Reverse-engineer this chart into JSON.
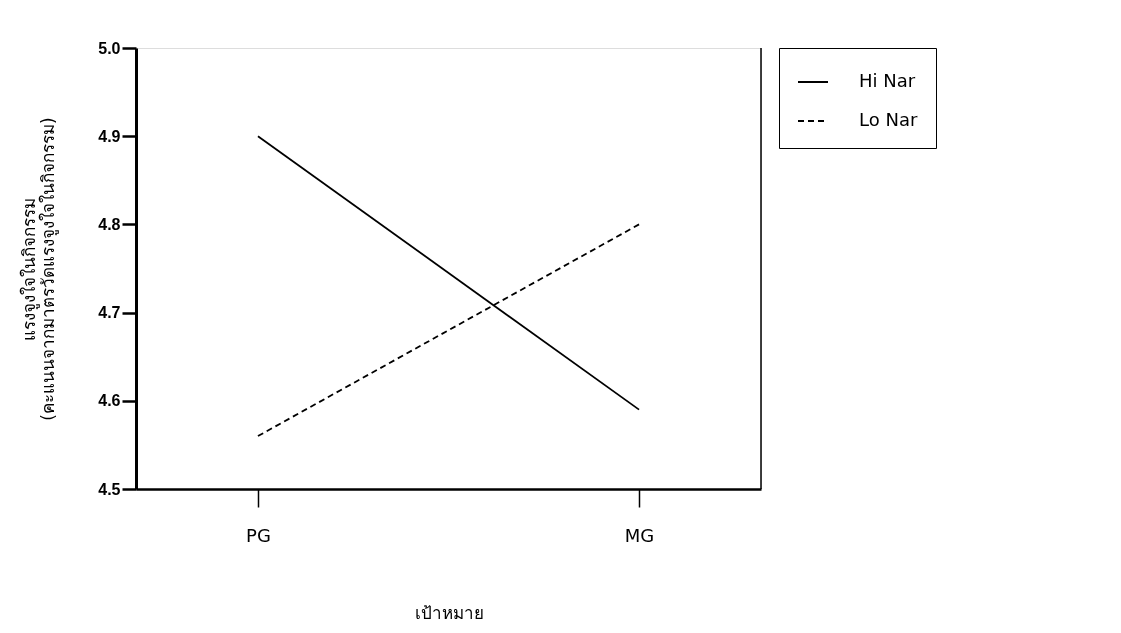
{
  "chart_data": {
    "type": "line",
    "xlabel": "เป้าหมาย",
    "ylabel": "แรงจูงใจในกิจกรรม\n(คะแนนจากมาตรวัดแรงจูงใจในกิจกรรม)",
    "categories": [
      "PG",
      "MG"
    ],
    "series": [
      {
        "name": "Hi Nar",
        "color": "#000000",
        "line_style": "solid",
        "values": [
          4.9,
          4.59
        ]
      },
      {
        "name": "Lo Nar",
        "color": "#000000",
        "line_style": "dashed",
        "values": [
          4.56,
          4.8
        ]
      }
    ],
    "ylim": [
      4.5,
      5.0
    ],
    "yticks": [
      4.5,
      4.6,
      4.7,
      4.8,
      4.9,
      {
        "value": 5.0,
        "label": "5.0"
      }
    ],
    "grid": false,
    "legend": "right",
    "marker": "none"
  }
}
